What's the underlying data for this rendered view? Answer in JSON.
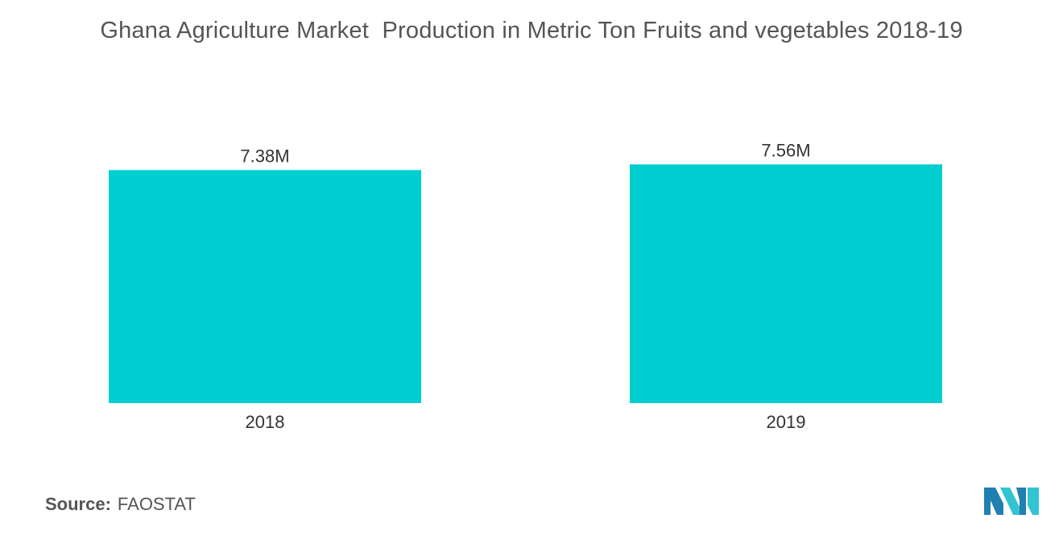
{
  "chart_data": {
    "type": "bar",
    "title": "Ghana Agriculture Market  Production in Metric Ton Fruits and vegetables 2018-19",
    "categories": [
      "2018",
      "2019"
    ],
    "values": [
      7.38,
      7.56
    ],
    "value_labels": [
      "7.38M",
      "7.56M"
    ],
    "ylim": [
      0,
      7.9
    ],
    "grid": false,
    "legend": "none",
    "bar_color": "#00CED1"
  },
  "source": {
    "label": "Source:",
    "value": "FAOSTAT"
  },
  "logo": {
    "icon": "mordor-intelligence-logo-icon",
    "colors": [
      "#1f7fb0",
      "#33c4d2"
    ]
  }
}
